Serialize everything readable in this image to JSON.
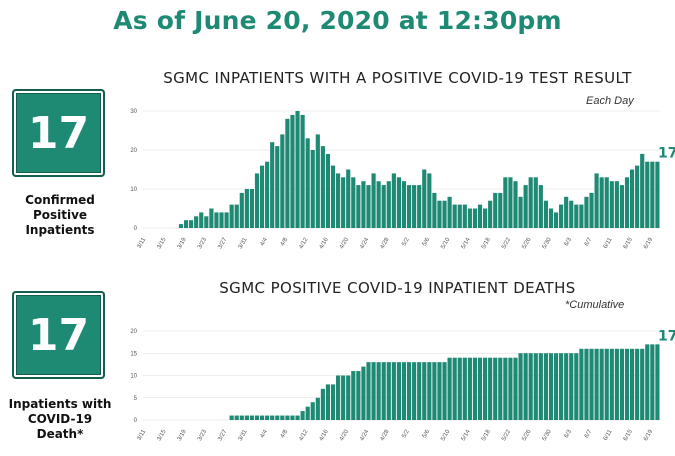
{
  "headline": "As of June 20, 2020 at 12:30pm",
  "colors": {
    "accent": "#1f8a74",
    "bar": "#1f8a74",
    "headline": "#1f8a74",
    "grid": "#dddddd"
  },
  "badges": [
    {
      "value": "17",
      "label_lines": [
        "Confirmed",
        "Positive",
        "Inpatients"
      ]
    },
    {
      "value": "17",
      "label_lines": [
        "Inpatients with",
        "COVID-19",
        "Death*"
      ]
    }
  ],
  "chart_data": [
    {
      "type": "bar",
      "title": "SGMC INPATIENTS WITH A POSITIVE COVID-19 TEST RESULT",
      "note": "Each Day",
      "end_label": "17",
      "start_date": "3/11",
      "x_tick_labels": [
        "3/11",
        "3/15",
        "3/19",
        "3/23",
        "3/27",
        "3/31",
        "4/4",
        "4/8",
        "4/12",
        "4/16",
        "4/20",
        "4/24",
        "4/28",
        "5/2",
        "5/6",
        "5/10",
        "5/14",
        "5/18",
        "5/22",
        "5/26",
        "5/30",
        "6/3",
        "6/7",
        "6/11",
        "6/15",
        "6/19"
      ],
      "y_ticks": [
        0,
        10,
        20,
        30
      ],
      "ylim": [
        0,
        30
      ],
      "grid": true,
      "values": [
        0,
        0,
        0,
        0,
        0,
        0,
        0,
        1,
        2,
        2,
        3,
        4,
        3,
        5,
        4,
        4,
        4,
        6,
        6,
        9,
        10,
        10,
        14,
        16,
        17,
        22,
        21,
        24,
        28,
        29,
        30,
        29,
        23,
        20,
        24,
        21,
        19,
        16,
        14,
        13,
        15,
        13,
        11,
        12,
        11,
        14,
        12,
        11,
        12,
        14,
        13,
        12,
        11,
        11,
        11,
        15,
        14,
        9,
        7,
        7,
        8,
        6,
        6,
        6,
        5,
        5,
        6,
        5,
        7,
        9,
        9,
        13,
        13,
        12,
        8,
        11,
        13,
        13,
        11,
        7,
        5,
        4,
        6,
        8,
        7,
        6,
        6,
        8,
        9,
        14,
        13,
        13,
        12,
        12,
        11,
        13,
        15,
        16,
        19,
        17,
        17,
        17
      ]
    },
    {
      "type": "bar",
      "title": "SGMC POSITIVE COVID-19 INPATIENT DEATHS",
      "note": "*Cumulative",
      "end_label": "17",
      "start_date": "3/11",
      "x_tick_labels": [
        "3/11",
        "3/15",
        "3/19",
        "3/23",
        "3/27",
        "3/31",
        "4/4",
        "4/8",
        "4/12",
        "4/16",
        "4/20",
        "4/24",
        "4/28",
        "5/2",
        "5/6",
        "5/10",
        "5/14",
        "5/18",
        "5/22",
        "5/26",
        "5/30",
        "6/3",
        "6/7",
        "6/11",
        "6/15",
        "6/19"
      ],
      "y_ticks": [
        0,
        5,
        10,
        15,
        20
      ],
      "ylim": [
        0,
        20
      ],
      "grid": true,
      "values": [
        0,
        0,
        0,
        0,
        0,
        0,
        0,
        0,
        0,
        0,
        0,
        0,
        0,
        0,
        0,
        0,
        0,
        1,
        1,
        1,
        1,
        1,
        1,
        1,
        1,
        1,
        1,
        1,
        1,
        1,
        1,
        2,
        3,
        4,
        5,
        7,
        8,
        8,
        10,
        10,
        10,
        11,
        11,
        12,
        13,
        13,
        13,
        13,
        13,
        13,
        13,
        13,
        13,
        13,
        13,
        13,
        13,
        13,
        13,
        13,
        14,
        14,
        14,
        14,
        14,
        14,
        14,
        14,
        14,
        14,
        14,
        14,
        14,
        14,
        15,
        15,
        15,
        15,
        15,
        15,
        15,
        15,
        15,
        15,
        15,
        15,
        16,
        16,
        16,
        16,
        16,
        16,
        16,
        16,
        16,
        16,
        16,
        16,
        16,
        17,
        17,
        17
      ]
    }
  ]
}
